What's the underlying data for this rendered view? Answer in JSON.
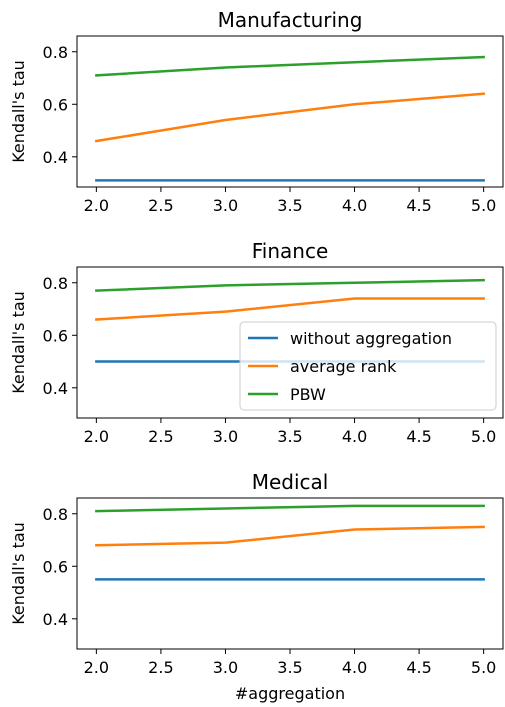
{
  "chart_data": [
    {
      "type": "line",
      "title": "Manufacturing",
      "xlabel": "",
      "ylabel": "Kendall's tau",
      "x": [
        2,
        3,
        4,
        5
      ],
      "xticks": [
        "2.0",
        "2.5",
        "3.0",
        "3.5",
        "4.0",
        "4.5",
        "5.0"
      ],
      "yticks": [
        "0.4",
        "0.6",
        "0.8"
      ],
      "xlim": [
        1.85,
        5.15
      ],
      "ylim": [
        0.285,
        0.86
      ],
      "legend": false,
      "series": [
        {
          "name": "without aggregation",
          "color": "#1f77b4",
          "values": [
            0.31,
            0.31,
            0.31,
            0.31
          ]
        },
        {
          "name": "average rank",
          "color": "#ff7f0e",
          "values": [
            0.46,
            0.54,
            0.6,
            0.64
          ]
        },
        {
          "name": "PBW",
          "color": "#2ca02c",
          "values": [
            0.71,
            0.74,
            0.76,
            0.78
          ]
        }
      ]
    },
    {
      "type": "line",
      "title": "Finance",
      "xlabel": "",
      "ylabel": "Kendall's tau",
      "x": [
        2,
        3,
        4,
        5
      ],
      "xticks": [
        "2.0",
        "2.5",
        "3.0",
        "3.5",
        "4.0",
        "4.5",
        "5.0"
      ],
      "yticks": [
        "0.4",
        "0.6",
        "0.8"
      ],
      "xlim": [
        1.85,
        5.15
      ],
      "ylim": [
        0.285,
        0.86
      ],
      "legend": true,
      "legend_loc": "center-right",
      "series": [
        {
          "name": "without aggregation",
          "color": "#1f77b4",
          "values": [
            0.5,
            0.5,
            0.5,
            0.5
          ]
        },
        {
          "name": "average rank",
          "color": "#ff7f0e",
          "values": [
            0.66,
            0.69,
            0.74,
            0.74
          ]
        },
        {
          "name": "PBW",
          "color": "#2ca02c",
          "values": [
            0.77,
            0.79,
            0.8,
            0.81
          ]
        }
      ]
    },
    {
      "type": "line",
      "title": "Medical",
      "xlabel": "#aggregation",
      "ylabel": "Kendall's tau",
      "x": [
        2,
        3,
        4,
        5
      ],
      "xticks": [
        "2.0",
        "2.5",
        "3.0",
        "3.5",
        "4.0",
        "4.5",
        "5.0"
      ],
      "yticks": [
        "0.4",
        "0.6",
        "0.8"
      ],
      "xlim": [
        1.85,
        5.15
      ],
      "ylim": [
        0.285,
        0.86
      ],
      "legend": false,
      "series": [
        {
          "name": "without aggregation",
          "color": "#1f77b4",
          "values": [
            0.55,
            0.55,
            0.55,
            0.55
          ]
        },
        {
          "name": "average rank",
          "color": "#ff7f0e",
          "values": [
            0.68,
            0.69,
            0.74,
            0.75
          ]
        },
        {
          "name": "PBW",
          "color": "#2ca02c",
          "values": [
            0.81,
            0.82,
            0.83,
            0.83
          ]
        }
      ]
    }
  ]
}
